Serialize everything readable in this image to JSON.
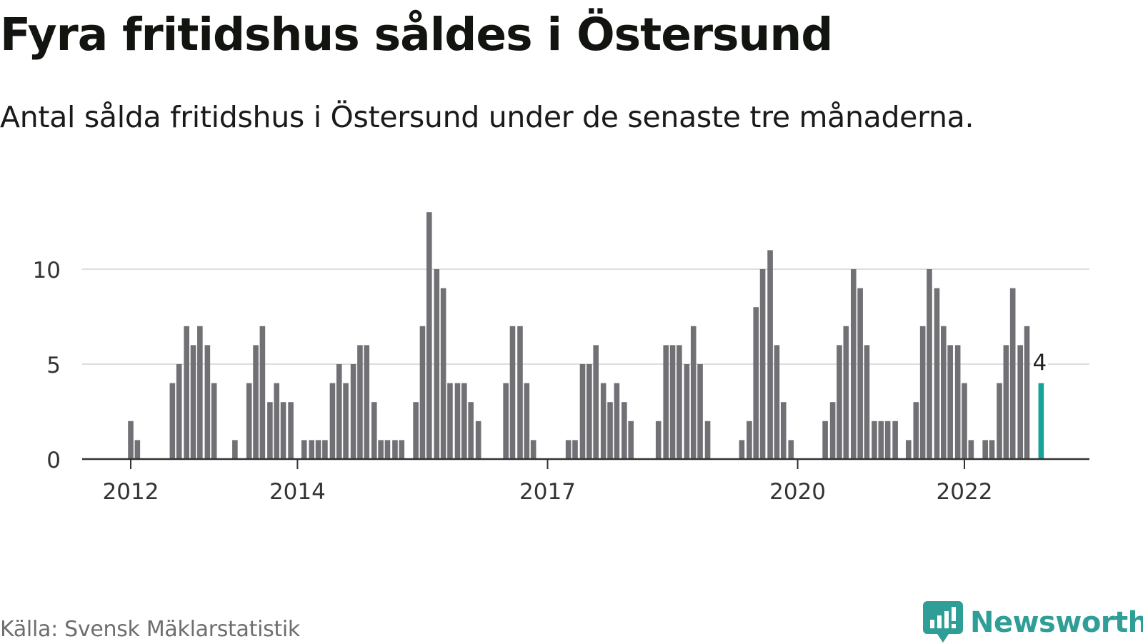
{
  "header": {
    "title": "Fyra fritidshus såldes i Östersund",
    "subtitle": "Antal sålda fritidshus i Östersund under de senaste tre månaderna."
  },
  "footer": {
    "source": "Källa: Svensk Mäklarstatistik",
    "brand": "Newsworthy"
  },
  "colors": {
    "bar": "#707075",
    "highlight": "#18a39a",
    "grid": "#dddddd",
    "axis": "#333333",
    "brand": "#2e9e96"
  },
  "chart_data": {
    "type": "bar",
    "x_tick_labels": [
      "2012",
      "2014",
      "2017",
      "2020",
      "2022"
    ],
    "x_tick_positions": [
      2012.0,
      2014.0,
      2017.0,
      2020.0,
      2022.0
    ],
    "y_ticks": [
      0,
      5,
      10
    ],
    "ylim": [
      0,
      13
    ],
    "xlim": [
      2011.42,
      2023.5
    ],
    "grid": true,
    "highlight_label": "4",
    "values": [
      {
        "x": 2012.0,
        "y": 2
      },
      {
        "x": 2012.08,
        "y": 1
      },
      {
        "x": 2012.5,
        "y": 4
      },
      {
        "x": 2012.58,
        "y": 5
      },
      {
        "x": 2012.67,
        "y": 7
      },
      {
        "x": 2012.75,
        "y": 6
      },
      {
        "x": 2012.83,
        "y": 7
      },
      {
        "x": 2012.92,
        "y": 6
      },
      {
        "x": 2013.0,
        "y": 4
      },
      {
        "x": 2013.25,
        "y": 1
      },
      {
        "x": 2013.42,
        "y": 4
      },
      {
        "x": 2013.5,
        "y": 6
      },
      {
        "x": 2013.58,
        "y": 7
      },
      {
        "x": 2013.67,
        "y": 3
      },
      {
        "x": 2013.75,
        "y": 4
      },
      {
        "x": 2013.83,
        "y": 3
      },
      {
        "x": 2013.92,
        "y": 3
      },
      {
        "x": 2014.08,
        "y": 1
      },
      {
        "x": 2014.17,
        "y": 1
      },
      {
        "x": 2014.25,
        "y": 1
      },
      {
        "x": 2014.33,
        "y": 1
      },
      {
        "x": 2014.42,
        "y": 4
      },
      {
        "x": 2014.5,
        "y": 5
      },
      {
        "x": 2014.58,
        "y": 4
      },
      {
        "x": 2014.67,
        "y": 5
      },
      {
        "x": 2014.75,
        "y": 6
      },
      {
        "x": 2014.83,
        "y": 6
      },
      {
        "x": 2014.92,
        "y": 3
      },
      {
        "x": 2015.0,
        "y": 1
      },
      {
        "x": 2015.08,
        "y": 1
      },
      {
        "x": 2015.17,
        "y": 1
      },
      {
        "x": 2015.25,
        "y": 1
      },
      {
        "x": 2015.42,
        "y": 3
      },
      {
        "x": 2015.5,
        "y": 7
      },
      {
        "x": 2015.58,
        "y": 13
      },
      {
        "x": 2015.67,
        "y": 10
      },
      {
        "x": 2015.75,
        "y": 9
      },
      {
        "x": 2015.83,
        "y": 4
      },
      {
        "x": 2015.92,
        "y": 4
      },
      {
        "x": 2016.0,
        "y": 4
      },
      {
        "x": 2016.08,
        "y": 3
      },
      {
        "x": 2016.17,
        "y": 2
      },
      {
        "x": 2016.5,
        "y": 4
      },
      {
        "x": 2016.58,
        "y": 7
      },
      {
        "x": 2016.67,
        "y": 7
      },
      {
        "x": 2016.75,
        "y": 4
      },
      {
        "x": 2016.83,
        "y": 1
      },
      {
        "x": 2017.25,
        "y": 1
      },
      {
        "x": 2017.33,
        "y": 1
      },
      {
        "x": 2017.42,
        "y": 5
      },
      {
        "x": 2017.5,
        "y": 5
      },
      {
        "x": 2017.58,
        "y": 6
      },
      {
        "x": 2017.67,
        "y": 4
      },
      {
        "x": 2017.75,
        "y": 3
      },
      {
        "x": 2017.83,
        "y": 4
      },
      {
        "x": 2017.92,
        "y": 3
      },
      {
        "x": 2018.0,
        "y": 2
      },
      {
        "x": 2018.33,
        "y": 2
      },
      {
        "x": 2018.42,
        "y": 6
      },
      {
        "x": 2018.5,
        "y": 6
      },
      {
        "x": 2018.58,
        "y": 6
      },
      {
        "x": 2018.67,
        "y": 5
      },
      {
        "x": 2018.75,
        "y": 7
      },
      {
        "x": 2018.83,
        "y": 5
      },
      {
        "x": 2018.92,
        "y": 2
      },
      {
        "x": 2019.33,
        "y": 1
      },
      {
        "x": 2019.42,
        "y": 2
      },
      {
        "x": 2019.5,
        "y": 8
      },
      {
        "x": 2019.58,
        "y": 10
      },
      {
        "x": 2019.67,
        "y": 11
      },
      {
        "x": 2019.75,
        "y": 6
      },
      {
        "x": 2019.83,
        "y": 3
      },
      {
        "x": 2019.92,
        "y": 1
      },
      {
        "x": 2020.33,
        "y": 2
      },
      {
        "x": 2020.42,
        "y": 3
      },
      {
        "x": 2020.5,
        "y": 6
      },
      {
        "x": 2020.58,
        "y": 7
      },
      {
        "x": 2020.67,
        "y": 10
      },
      {
        "x": 2020.75,
        "y": 9
      },
      {
        "x": 2020.83,
        "y": 6
      },
      {
        "x": 2020.92,
        "y": 2
      },
      {
        "x": 2021.0,
        "y": 2
      },
      {
        "x": 2021.08,
        "y": 2
      },
      {
        "x": 2021.17,
        "y": 2
      },
      {
        "x": 2021.33,
        "y": 1
      },
      {
        "x": 2021.42,
        "y": 3
      },
      {
        "x": 2021.5,
        "y": 7
      },
      {
        "x": 2021.58,
        "y": 10
      },
      {
        "x": 2021.67,
        "y": 9
      },
      {
        "x": 2021.75,
        "y": 7
      },
      {
        "x": 2021.83,
        "y": 6
      },
      {
        "x": 2021.92,
        "y": 6
      },
      {
        "x": 2022.0,
        "y": 4
      },
      {
        "x": 2022.08,
        "y": 1
      },
      {
        "x": 2022.25,
        "y": 1
      },
      {
        "x": 2022.33,
        "y": 1
      },
      {
        "x": 2022.42,
        "y": 4
      },
      {
        "x": 2022.5,
        "y": 6
      },
      {
        "x": 2022.58,
        "y": 9
      },
      {
        "x": 2022.67,
        "y": 6
      },
      {
        "x": 2022.75,
        "y": 7
      },
      {
        "x": 2022.92,
        "y": 4,
        "highlight": true
      }
    ]
  }
}
